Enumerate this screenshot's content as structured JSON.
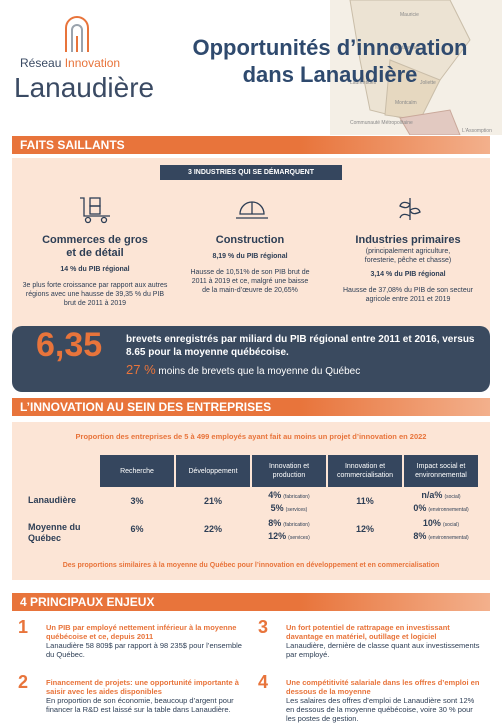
{
  "header": {
    "logo_top": "Réseau",
    "logo_accent": "Innovation",
    "logo_name": "Lanaudière",
    "title_line1": "Opportunités d’innovation",
    "title_line2": "dans Lanaudière",
    "map_labels": [
      "Mauricie",
      "Matawinie",
      "Joliette",
      "Montcalm",
      "Laurentides",
      "Communauté Métropolitaine",
      "L'Assomption"
    ]
  },
  "highlights": {
    "heading": "FAITS SAILLANTS",
    "badge": "3 INDUSTRIES QUI SE DÉMARQUENT",
    "industries": [
      {
        "name": "Commerces de gros et de détail",
        "stat": "14 % du PIB régional",
        "text": "3e plus forte croissance par rapport aux autres régions avec une hausse de 39,35 % du PIB brut de 2011 à 2019"
      },
      {
        "name": "Construction",
        "stat": "8,19 % du PIB régional",
        "text": "Hausse de 10,51% de son PIB brut de 2011 à 2019 et ce, malgré une baisse de la main-d’œuvre de 20,65%"
      },
      {
        "name": "Industries primaires",
        "note": "(principalement agriculture, foresterie, pêche et chasse)",
        "stat": "3,14 % du PIB régional",
        "text": "Hausse de 37,08% du PIB de son secteur agricole entre 2011 et 2019"
      }
    ],
    "patents": {
      "value": "6,35",
      "text": "brevets enregistrés par miliard du PIB régional entre 2011 et 2016, versus 8.65 pour la moyenne québécoise.",
      "gap": "27 %",
      "gap_text": "moins de brevets que la moyenne du Québec"
    }
  },
  "innovation": {
    "heading": "L’INNOVATION AU SEIN DES ENTREPRISES",
    "subtitle": "Proportion des entreprises de 5 à 499 employés ayant fait au moins un projet d’innovation en 2022",
    "columns": [
      "Recherche",
      "Développement",
      "Innovation et production",
      "Innovation et commercialisation",
      "Impact social et environnemental"
    ],
    "rows": [
      {
        "label": "Lanaudière",
        "cells": [
          [
            {
              "value": "3%"
            }
          ],
          [
            {
              "value": "21%"
            }
          ],
          [
            {
              "value": "4%",
              "note": "(fabrication)"
            },
            {
              "value": "5%",
              "note": "(services)"
            }
          ],
          [
            {
              "value": "11%"
            }
          ],
          [
            {
              "value": "n/a%",
              "note": "(social)"
            },
            {
              "value": "0%",
              "note": "(environnemental)"
            }
          ]
        ]
      },
      {
        "label": "Moyenne du Québec",
        "cells": [
          [
            {
              "value": "6%"
            }
          ],
          [
            {
              "value": "22%"
            }
          ],
          [
            {
              "value": "8%",
              "note": "(fabrication)"
            },
            {
              "value": "12%",
              "note": "(services)"
            }
          ],
          [
            {
              "value": "12%"
            }
          ],
          [
            {
              "value": "10%",
              "note": "(social)"
            },
            {
              "value": "8%",
              "note": "(environnemental)"
            }
          ]
        ]
      }
    ],
    "footnote": "Des proportions similaires à la moyenne du Québec pour l’innovation en développement et en commercialisation"
  },
  "issues": {
    "heading": "4 PRINCIPAUX ENJEUX",
    "items": [
      {
        "number": "1",
        "title": "Un PIB par employé nettement inférieur à la moyenne québécoise et ce, depuis 2011",
        "text": "Lanaudière 58 809$ par rapport à 98 235$ pour l’ensemble du Québec."
      },
      {
        "number": "2",
        "title": "Financement de projets: une opportunité importante à saisir avec les aides disponibles",
        "text": "En proportion de son économie, beaucoup d’argent pour financer la R&D est laissé sur la table dans Lanaudière."
      },
      {
        "number": "3",
        "title": "Un fort potentiel de rattrapage en investissant davantage en matériel, outillage et logiciel",
        "text": "Lanaudière, dernière de classe quant aux investissements par employé."
      },
      {
        "number": "4",
        "title": "Une compétitivité salariale dans les offres d’emploi en dessous de la moyenne",
        "text": "Les salaires des offres d’emploi de Lanaudière sont 12% en dessous de la moyenne québécoise, voire 30 % pour les postes de gestion."
      }
    ]
  }
}
